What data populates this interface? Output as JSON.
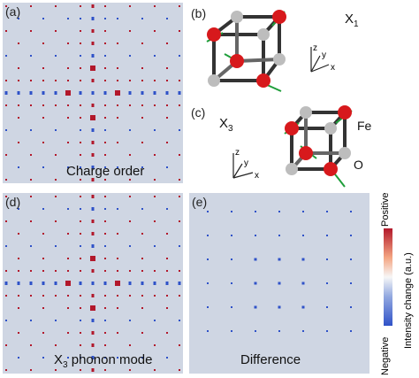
{
  "panels": {
    "a": {
      "label": "(a)",
      "caption": "Charge order"
    },
    "b": {
      "label": "(b)",
      "mode": "X",
      "mode_sub": "1"
    },
    "c": {
      "label": "(c)",
      "mode": "X",
      "mode_sub": "3",
      "atom_fe": "Fe",
      "atom_o": "O"
    },
    "d": {
      "label": "(d)",
      "caption_main": "X",
      "caption_sub": "3",
      "caption_rest": " phonon mode"
    },
    "e": {
      "label": "(e)",
      "caption": "Difference"
    }
  },
  "axes": {
    "x": "x",
    "y": "y",
    "z": "z"
  },
  "colorbar": {
    "top_label": "Positive",
    "bottom_label": "Negative",
    "title": "Intensity change (a.u.)",
    "colors": {
      "positive": "#b2182b",
      "zero": "#f7f7f7",
      "negative": "#2f52c8"
    }
  },
  "colors": {
    "background_map": "#cfd6e3",
    "fe_atom": "#d7191c",
    "o_atom": "#bdbdbd",
    "arrow": "#1f9e3a"
  }
}
